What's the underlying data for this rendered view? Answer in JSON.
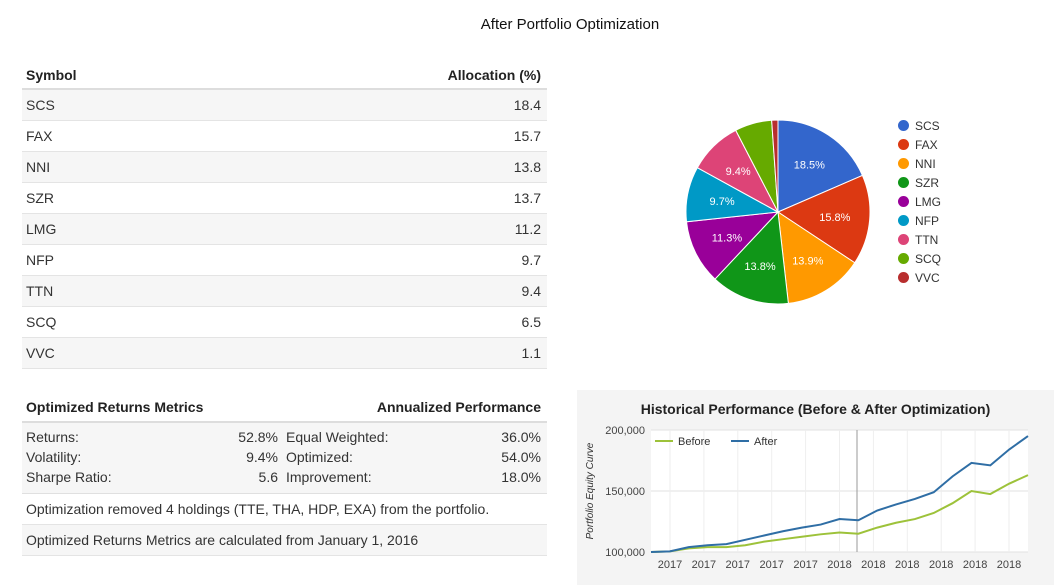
{
  "page_title": "After Portfolio Optimization",
  "allocation_table": {
    "headers": [
      "Symbol",
      "Allocation (%)"
    ],
    "rows": [
      {
        "symbol": "SCS",
        "allocation": "18.4"
      },
      {
        "symbol": "FAX",
        "allocation": "15.7"
      },
      {
        "symbol": "NNI",
        "allocation": "13.8"
      },
      {
        "symbol": "SZR",
        "allocation": "13.7"
      },
      {
        "symbol": "LMG",
        "allocation": "11.2"
      },
      {
        "symbol": "NFP",
        "allocation": "9.7"
      },
      {
        "symbol": "TTN",
        "allocation": "9.4"
      },
      {
        "symbol": "SCQ",
        "allocation": "6.5"
      },
      {
        "symbol": "VVC",
        "allocation": "1.1"
      }
    ]
  },
  "metrics": {
    "header_left": "Optimized Returns Metrics",
    "header_right": "Annualized Performance",
    "rows": [
      {
        "l1": "Returns:",
        "v1": "52.8%",
        "l2": "Equal Weighted:",
        "v2": "36.0%"
      },
      {
        "l1": "Volatility:",
        "v1": "9.4%",
        "l2": "Optimized:",
        "v2": "54.0%"
      },
      {
        "l1": "Sharpe Ratio:",
        "v1": "5.6",
        "l2": "Improvement:",
        "v2": "18.0%"
      }
    ],
    "note_removed": "Optimization removed 4 holdings (TTE, THA, HDP, EXA) from the portfolio.",
    "note_calc": "Optimized Returns Metrics are calculated from January 1, 2016"
  },
  "chart_data": [
    {
      "type": "pie",
      "labels": [
        "SCS",
        "FAX",
        "NNI",
        "SZR",
        "LMG",
        "NFP",
        "TTN",
        "SCQ",
        "VVC"
      ],
      "values": [
        18.5,
        15.8,
        13.9,
        13.8,
        11.3,
        9.7,
        9.4,
        6.5,
        1.1
      ],
      "value_labels": [
        "18.5%",
        "15.8%",
        "13.9%",
        "13.8%",
        "11.3%",
        "9.7%",
        "9.4%",
        "",
        ""
      ],
      "colors": [
        "#3366cc",
        "#dc3912",
        "#ff9900",
        "#109618",
        "#990099",
        "#0099c6",
        "#dd4477",
        "#66aa00",
        "#b82e2e"
      ],
      "legend_position": "right"
    },
    {
      "type": "line",
      "title": "Historical Performance (Before & After Optimization)",
      "ylabel": "Portfolio Equity Curve",
      "x_tick_labels": [
        "2017",
        "2017",
        "2017",
        "2017",
        "2017",
        "2018",
        "2018",
        "2018",
        "2018",
        "2018",
        "2018"
      ],
      "y_ticks": [
        100000,
        150000,
        200000
      ],
      "y_tick_labels": [
        "100,000",
        "150,000",
        "200,000"
      ],
      "ylim": [
        100000,
        200000
      ],
      "legend_position": "top-left",
      "series": [
        {
          "name": "Before",
          "color": "#9dc23a",
          "values": [
            100000,
            100500,
            103000,
            104000,
            104000,
            105500,
            108500,
            110500,
            112500,
            114500,
            116000,
            115000,
            120000,
            124000,
            127000,
            132000,
            140000,
            150000,
            147500,
            156000,
            163000
          ]
        },
        {
          "name": "After",
          "color": "#2f6ea5",
          "values": [
            100000,
            100500,
            104000,
            105500,
            106500,
            110000,
            113500,
            117000,
            120000,
            122500,
            127000,
            126000,
            134000,
            139000,
            143500,
            149000,
            162000,
            173000,
            171000,
            184000,
            195000
          ]
        }
      ]
    }
  ]
}
